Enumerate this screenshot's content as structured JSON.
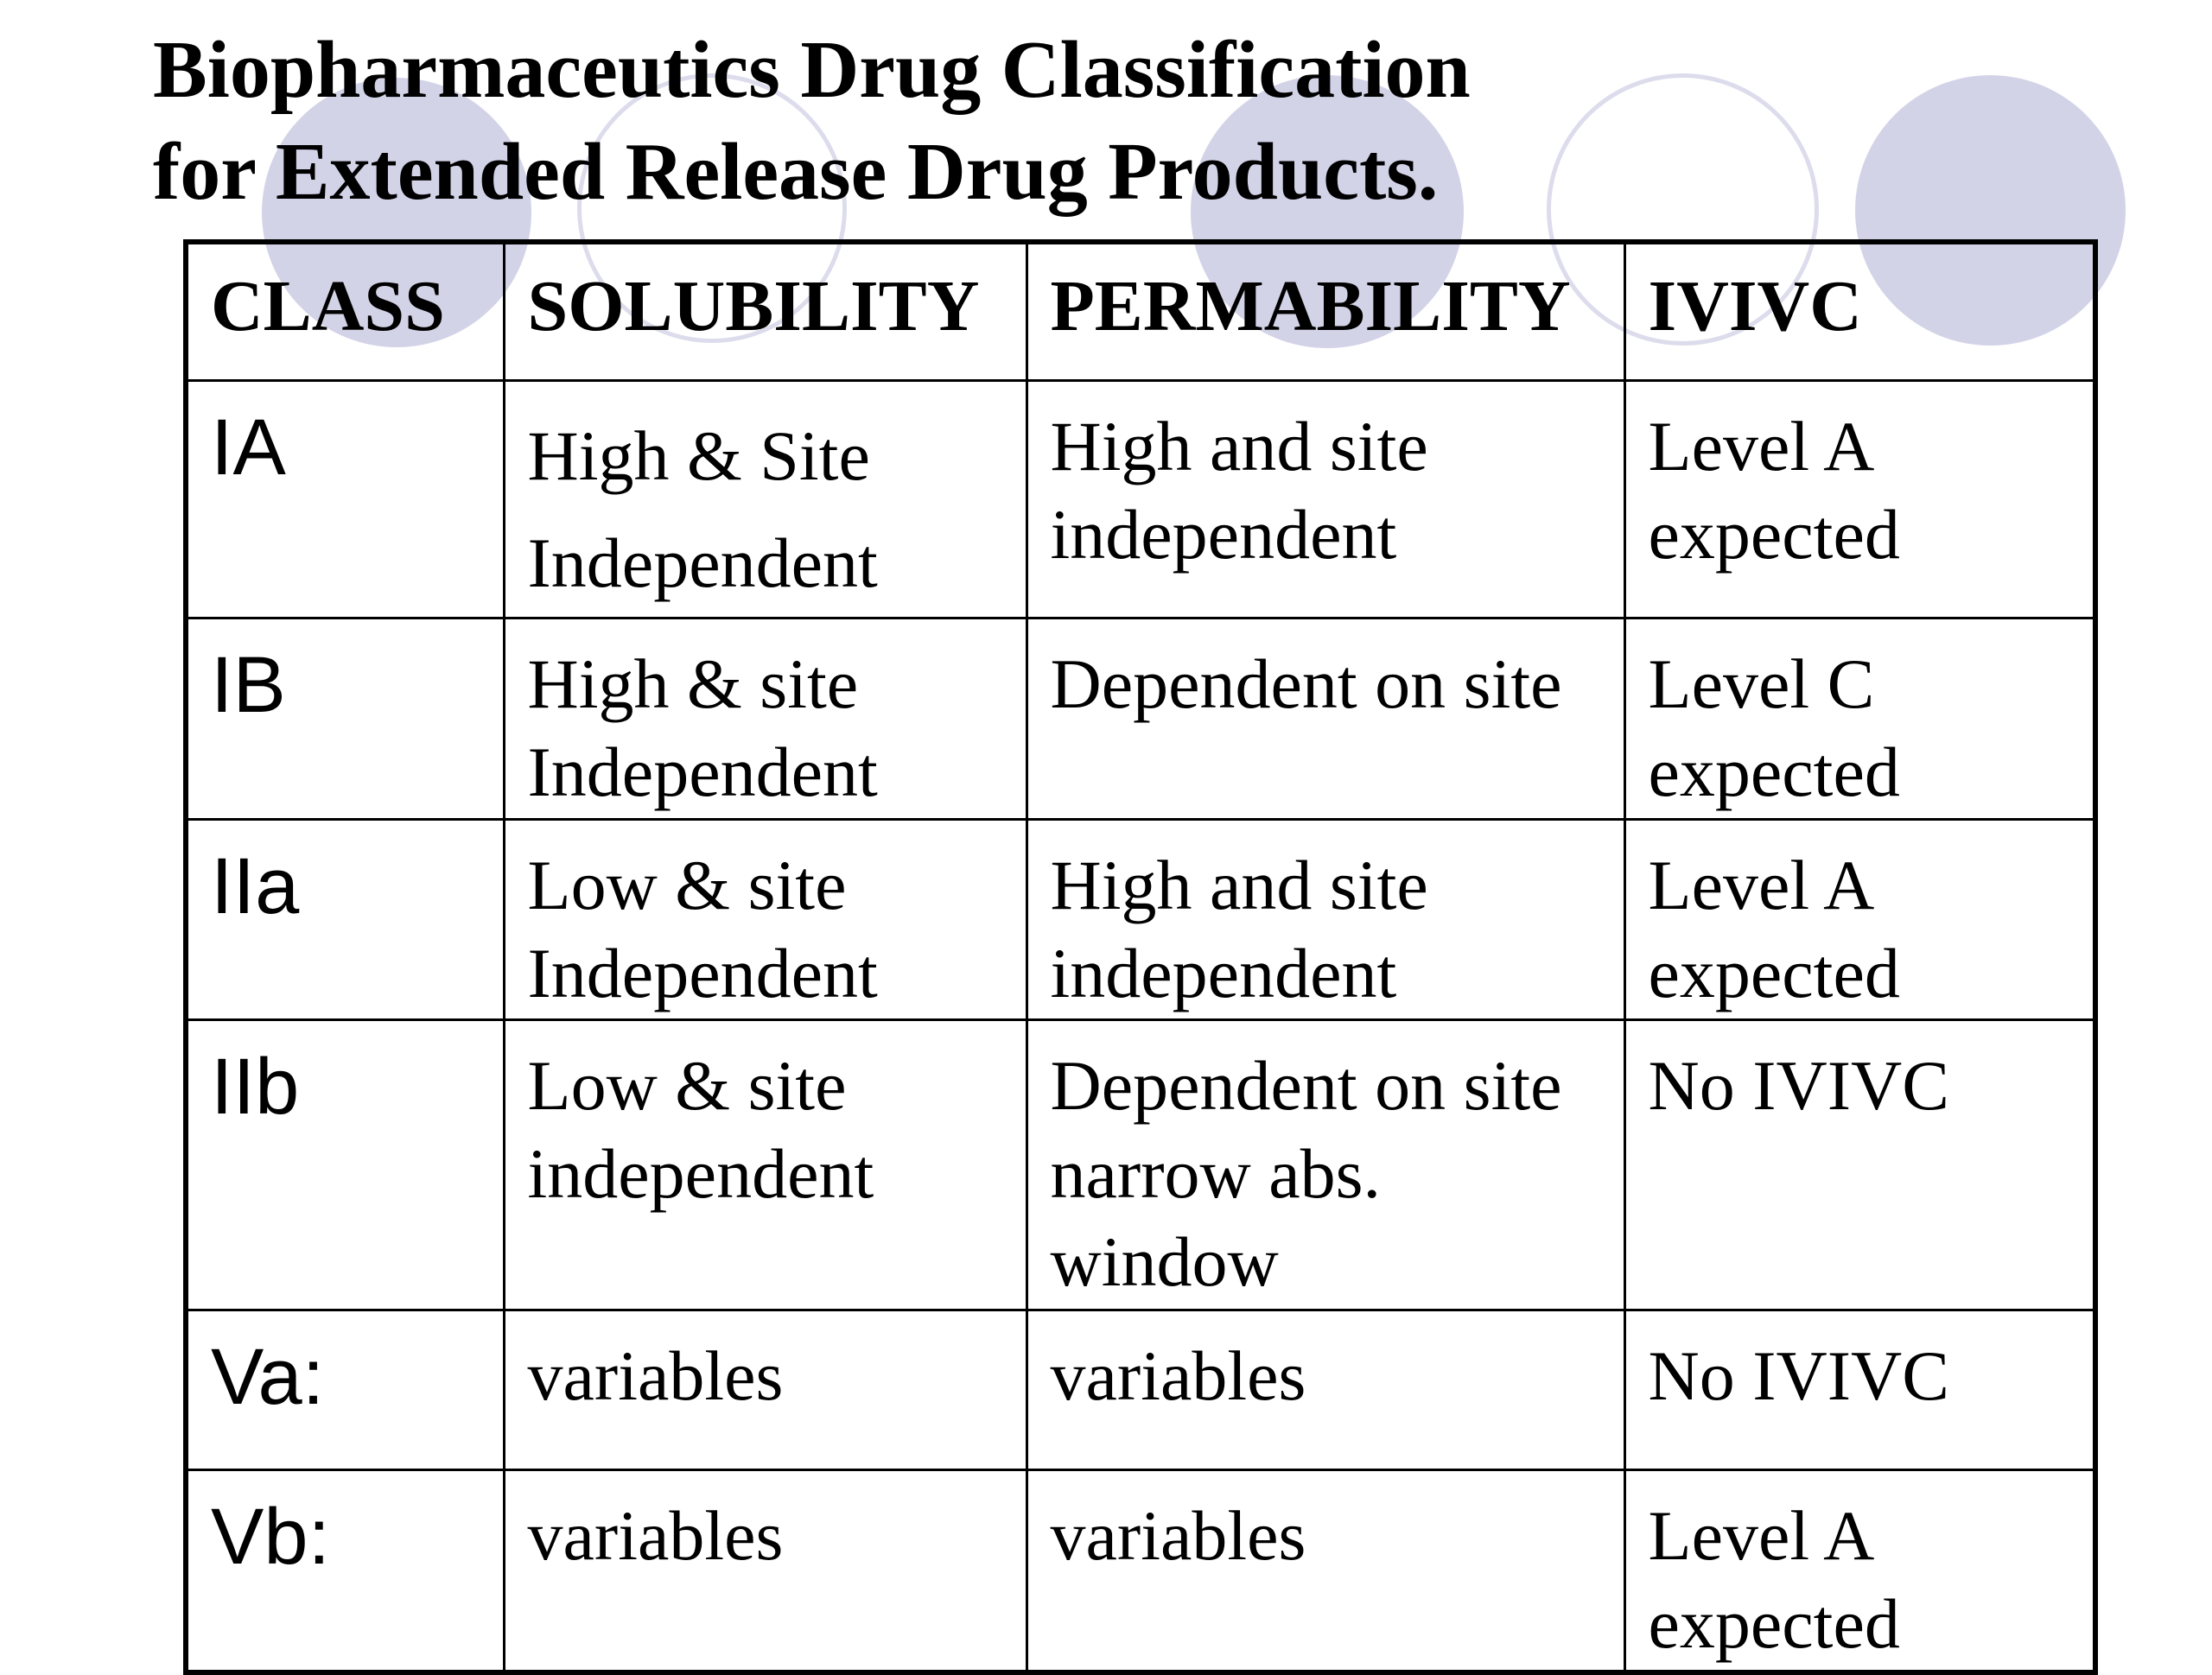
{
  "slide": {
    "title_line1": "Biopharmaceutics Drug Classification",
    "title_line2": "for Extended Release Drug Products.",
    "decoration_colors": {
      "filled_circle": "#d3d3e8",
      "ring_circle": "#dcdcec"
    }
  },
  "table": {
    "headers": {
      "class": "CLASS",
      "solubility": "SOLUBILITY",
      "permability": "PERMABILITY",
      "ivivc": "IVIVC"
    },
    "rows": [
      {
        "class": "IA",
        "solubility": "High & Site\nIndependent",
        "permability": "High and site\nindependent",
        "ivivc": "Level A\nexpected"
      },
      {
        "class": "IB",
        "solubility": "High & site\nIndependent",
        "permability": "Dependent on site",
        "ivivc": "Level C\nexpected"
      },
      {
        "class": "IIa",
        "solubility": "Low & site\nIndependent",
        "permability": "High and site\nindependent",
        "ivivc": "Level A\nexpected"
      },
      {
        "class": "IIb",
        "solubility": "Low & site\nindependent",
        "permability": "Dependent on site\nnarrow abs.\nwindow",
        "ivivc": "No IVIVC"
      },
      {
        "class": "Va:",
        "solubility": "variables",
        "permability": "variables",
        "ivivc": "No IVIVC"
      },
      {
        "class": "Vb:",
        "solubility": "variables",
        "permability": "variables",
        "ivivc": "Level A\nexpected"
      }
    ]
  }
}
